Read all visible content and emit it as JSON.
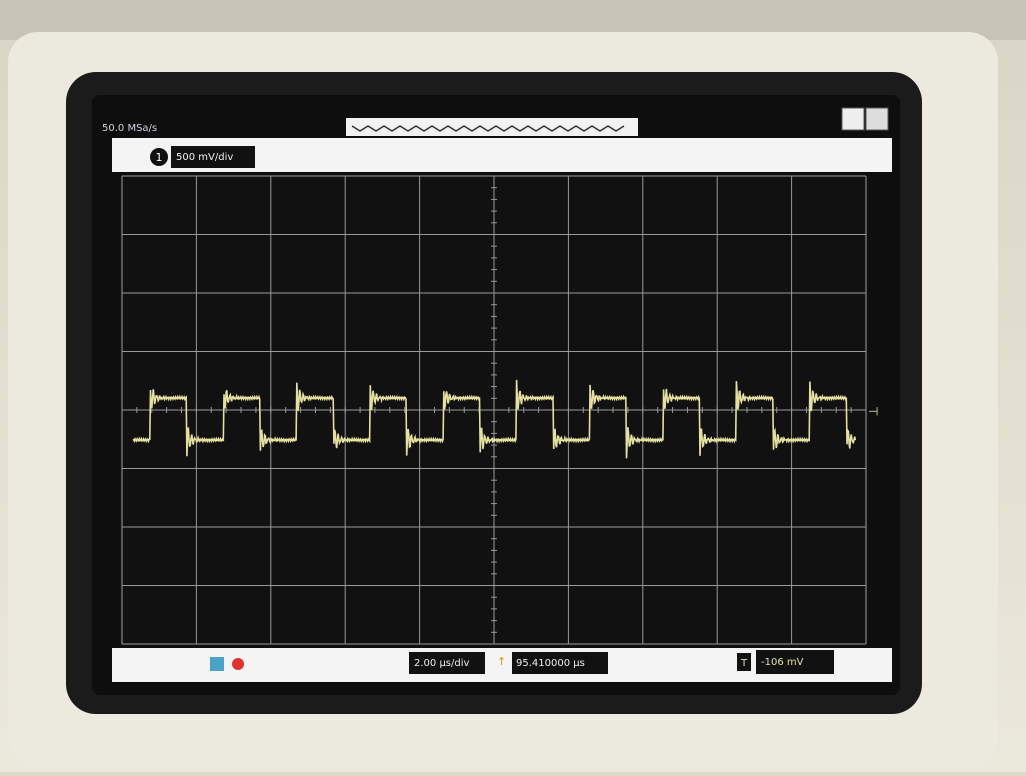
{
  "header": {
    "sample_rate": "50.0 MSa/s"
  },
  "channel": {
    "number": "1",
    "scale": "500 mV/div"
  },
  "footer": {
    "timebase": "2.00 µs/div",
    "delay": "95.410000 µs",
    "trigger_icon": "T",
    "trigger_level": "-106 mV"
  }
}
